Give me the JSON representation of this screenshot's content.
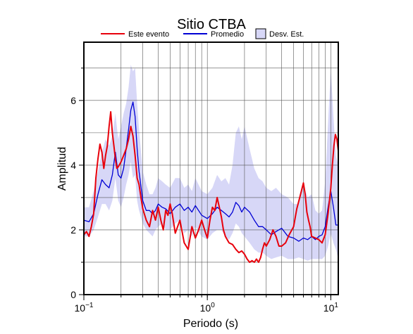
{
  "chart_data": {
    "type": "line",
    "title": "Sitio CTBA",
    "xlabel": "Periodo (s)",
    "ylabel": "Amplitud",
    "xscale": "log",
    "xlim": [
      0.1,
      11.5
    ],
    "ylim": [
      0,
      7.8
    ],
    "grid": true,
    "legend_position": "top",
    "x_ticks": [
      {
        "value": 0.1,
        "base": "10",
        "exp": "−1"
      },
      {
        "value": 1,
        "base": "10",
        "exp": "0"
      },
      {
        "value": 10,
        "base": "10",
        "exp": "1"
      }
    ],
    "y_ticks": [
      0,
      2,
      4,
      6
    ],
    "legend": [
      {
        "label": "Este evento",
        "kind": "line",
        "color": "#e8000b"
      },
      {
        "label": "Promedio",
        "kind": "line",
        "color": "#0000d4"
      },
      {
        "label": "Desv. Est.",
        "kind": "box",
        "color": "#d7d7f7"
      }
    ],
    "std_band": {
      "name": "Desv. Est.",
      "color": "#d7d7f7",
      "x": [
        0.1,
        0.11,
        0.12,
        0.13,
        0.14,
        0.15,
        0.16,
        0.17,
        0.18,
        0.19,
        0.2,
        0.21,
        0.22,
        0.23,
        0.24,
        0.25,
        0.26,
        0.27,
        0.28,
        0.3,
        0.32,
        0.34,
        0.36,
        0.38,
        0.4,
        0.43,
        0.46,
        0.5,
        0.55,
        0.6,
        0.65,
        0.7,
        0.75,
        0.8,
        0.9,
        1.0,
        1.1,
        1.2,
        1.3,
        1.4,
        1.5,
        1.6,
        1.7,
        1.8,
        1.9,
        2.0,
        2.2,
        2.4,
        2.6,
        2.8,
        3.0,
        3.3,
        3.6,
        4.0,
        4.5,
        5.0,
        5.5,
        6.0,
        6.5,
        7.0,
        7.5,
        8.0,
        8.5,
        9.0,
        9.5,
        10.0,
        10.5,
        11.0,
        11.5
      ],
      "upper": [
        2.7,
        2.7,
        3.2,
        3.8,
        4.4,
        4.8,
        4.6,
        4.9,
        5.6,
        4.8,
        5.2,
        5.6,
        5.9,
        6.4,
        7.1,
        6.9,
        7.0,
        5.9,
        5.1,
        3.8,
        3.4,
        3.1,
        3.1,
        3.3,
        3.6,
        3.5,
        3.4,
        3.3,
        3.6,
        3.6,
        3.3,
        3.4,
        3.2,
        3.6,
        3.2,
        3.1,
        3.3,
        3.7,
        3.5,
        3.6,
        3.4,
        4.0,
        5.0,
        5.2,
        4.8,
        5.2,
        4.5,
        3.9,
        3.6,
        3.5,
        3.3,
        3.2,
        3.3,
        3.1,
        3.0,
        2.8,
        2.8,
        3.4,
        3.0,
        3.1,
        2.6,
        2.5,
        2.6,
        3.5,
        5.3,
        7.0,
        5.5,
        4.3,
        4.0
      ],
      "lower": [
        1.8,
        1.8,
        2.0,
        2.4,
        2.8,
        2.8,
        2.6,
        2.9,
        3.6,
        2.9,
        2.7,
        3.0,
        3.4,
        3.7,
        4.1,
        3.6,
        3.7,
        2.9,
        2.6,
        2.2,
        2.0,
        1.9,
        1.8,
        2.0,
        2.1,
        2.2,
        2.0,
        2.0,
        2.2,
        2.3,
        1.9,
        2.0,
        1.8,
        2.1,
        1.8,
        1.7,
        1.9,
        2.0,
        2.0,
        1.8,
        1.7,
        1.9,
        2.2,
        2.1,
        1.9,
        1.8,
        1.6,
        1.4,
        1.3,
        1.3,
        1.2,
        1.1,
        1.15,
        1.2,
        1.1,
        1.1,
        1.15,
        1.1,
        1.05,
        1.1,
        1.1,
        1.1,
        1.1,
        1.2,
        1.5,
        1.9,
        1.6,
        1.4,
        1.1
      ]
    },
    "series": [
      {
        "name": "Promedio",
        "color": "#0000d4",
        "x": [
          0.1,
          0.11,
          0.12,
          0.13,
          0.14,
          0.15,
          0.16,
          0.17,
          0.18,
          0.19,
          0.2,
          0.21,
          0.22,
          0.23,
          0.24,
          0.25,
          0.26,
          0.27,
          0.28,
          0.3,
          0.32,
          0.34,
          0.36,
          0.38,
          0.4,
          0.43,
          0.46,
          0.5,
          0.55,
          0.6,
          0.65,
          0.7,
          0.75,
          0.8,
          0.9,
          1.0,
          1.1,
          1.2,
          1.3,
          1.4,
          1.5,
          1.6,
          1.7,
          1.8,
          1.9,
          2.0,
          2.2,
          2.4,
          2.6,
          2.8,
          3.0,
          3.3,
          3.6,
          4.0,
          4.5,
          5.0,
          5.5,
          6.0,
          6.5,
          7.0,
          7.5,
          8.0,
          8.5,
          9.0,
          9.5,
          10.0,
          10.5,
          11.0,
          11.5
        ],
        "y": [
          2.3,
          2.25,
          2.5,
          3.1,
          3.55,
          3.4,
          3.3,
          3.7,
          4.4,
          3.7,
          3.6,
          3.9,
          4.5,
          5.1,
          5.7,
          5.95,
          5.5,
          4.5,
          3.8,
          2.9,
          2.6,
          2.6,
          2.5,
          2.6,
          2.8,
          2.7,
          2.65,
          2.5,
          2.7,
          2.8,
          2.6,
          2.7,
          2.55,
          2.75,
          2.45,
          2.35,
          2.5,
          2.7,
          2.6,
          2.5,
          2.4,
          2.55,
          2.85,
          2.75,
          2.55,
          2.7,
          2.55,
          2.3,
          2.1,
          2.1,
          2.0,
          1.85,
          1.95,
          2.05,
          1.8,
          1.75,
          1.65,
          1.75,
          1.7,
          1.8,
          1.7,
          1.8,
          1.85,
          2.1,
          2.7,
          3.2,
          2.7,
          2.15,
          2.15
        ]
      },
      {
        "name": "Este evento",
        "color": "#e8000b",
        "x": [
          0.1,
          0.105,
          0.11,
          0.115,
          0.12,
          0.125,
          0.13,
          0.135,
          0.14,
          0.145,
          0.15,
          0.155,
          0.16,
          0.165,
          0.17,
          0.175,
          0.18,
          0.185,
          0.19,
          0.2,
          0.21,
          0.22,
          0.23,
          0.24,
          0.25,
          0.26,
          0.27,
          0.28,
          0.29,
          0.3,
          0.32,
          0.34,
          0.36,
          0.38,
          0.4,
          0.42,
          0.44,
          0.46,
          0.48,
          0.5,
          0.52,
          0.55,
          0.6,
          0.65,
          0.7,
          0.75,
          0.8,
          0.85,
          0.9,
          0.95,
          1.0,
          1.05,
          1.1,
          1.15,
          1.2,
          1.25,
          1.3,
          1.35,
          1.4,
          1.5,
          1.6,
          1.7,
          1.8,
          1.9,
          2.0,
          2.1,
          2.2,
          2.3,
          2.4,
          2.5,
          2.6,
          2.7,
          2.8,
          2.9,
          3.0,
          3.2,
          3.4,
          3.6,
          3.8,
          4.0,
          4.3,
          4.6,
          5.0,
          5.3,
          5.6,
          6.0,
          6.2,
          6.4,
          6.6,
          6.8,
          7.0,
          7.5,
          8.0,
          8.5,
          9.0,
          9.5,
          10.0,
          10.3,
          10.6,
          10.9,
          11.2,
          11.5
        ],
        "y": [
          1.85,
          1.95,
          1.8,
          2.1,
          2.5,
          3.6,
          4.2,
          4.65,
          4.4,
          3.9,
          4.3,
          4.6,
          5.2,
          5.65,
          5.0,
          4.6,
          4.2,
          3.9,
          3.95,
          4.1,
          4.3,
          4.5,
          4.8,
          5.2,
          4.9,
          4.3,
          3.6,
          3.4,
          3.0,
          2.65,
          2.3,
          2.1,
          2.6,
          2.3,
          2.7,
          2.3,
          2.0,
          2.6,
          2.45,
          2.8,
          2.5,
          1.9,
          2.3,
          1.6,
          1.4,
          2.1,
          1.75,
          2.0,
          2.3,
          2.0,
          1.75,
          2.3,
          2.7,
          2.6,
          3.0,
          2.7,
          2.4,
          2.0,
          1.8,
          1.6,
          1.55,
          1.4,
          1.3,
          1.35,
          1.25,
          1.1,
          1.0,
          1.05,
          1.0,
          1.1,
          1.0,
          1.15,
          1.4,
          1.6,
          1.5,
          1.7,
          2.0,
          1.8,
          1.5,
          1.5,
          1.6,
          1.85,
          2.1,
          2.65,
          3.0,
          3.45,
          3.1,
          2.55,
          2.3,
          2.1,
          1.8,
          1.75,
          1.7,
          1.6,
          1.85,
          2.5,
          3.3,
          4.0,
          4.6,
          4.95,
          4.8,
          4.45
        ]
      }
    ]
  }
}
